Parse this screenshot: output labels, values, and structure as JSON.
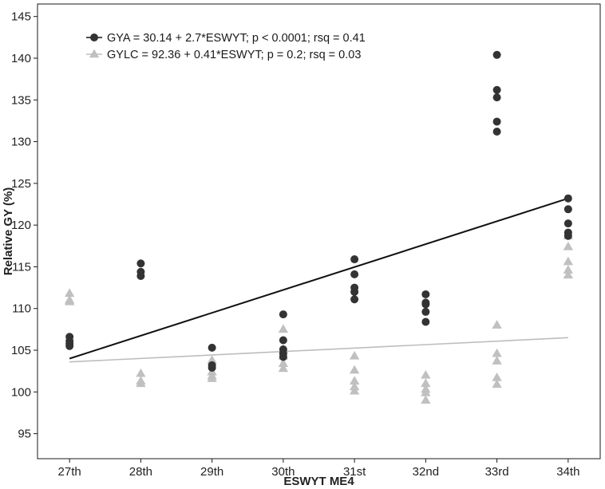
{
  "chart_data": {
    "type": "scatter",
    "xlabel": "ESWYT ME4",
    "ylabel": "Relative GY (%)",
    "categories": [
      "27th",
      "28th",
      "29th",
      "30th",
      "31st",
      "32nd",
      "33rd",
      "34th"
    ],
    "yticks": [
      95,
      100,
      105,
      110,
      115,
      120,
      125,
      130,
      135,
      140,
      145
    ],
    "ylim": [
      92,
      146.5
    ],
    "grid": false,
    "legend_position": "top-left",
    "series": [
      {
        "name": "GYA = 30.14 + 2.7*ESWYT; p < 0.0001; rsq = 0.41",
        "marker": "circle",
        "color": "#333333",
        "points": [
          [
            1,
            106.6
          ],
          [
            1,
            106.1
          ],
          [
            1,
            105.8
          ],
          [
            1,
            105.5
          ],
          [
            2,
            115.4
          ],
          [
            2,
            114.4
          ],
          [
            2,
            113.9
          ],
          [
            3,
            105.3
          ],
          [
            3,
            103.2
          ],
          [
            3,
            102.9
          ],
          [
            4,
            109.3
          ],
          [
            4,
            106.2
          ],
          [
            4,
            105.1
          ],
          [
            4,
            104.6
          ],
          [
            4,
            104.2
          ],
          [
            5,
            115.9
          ],
          [
            5,
            114.1
          ],
          [
            5,
            112.5
          ],
          [
            5,
            112.0
          ],
          [
            5,
            111.1
          ],
          [
            6,
            111.7
          ],
          [
            6,
            110.7
          ],
          [
            6,
            110.5
          ],
          [
            6,
            109.6
          ],
          [
            6,
            108.4
          ],
          [
            7,
            140.4
          ],
          [
            7,
            136.2
          ],
          [
            7,
            135.3
          ],
          [
            7,
            132.4
          ],
          [
            7,
            131.2
          ],
          [
            8,
            123.2
          ],
          [
            8,
            121.9
          ],
          [
            8,
            120.2
          ],
          [
            8,
            119.1
          ],
          [
            8,
            118.7
          ]
        ],
        "fit_line": {
          "color": "#111111",
          "x": [
            1,
            8
          ],
          "y": [
            104.0,
            123.2
          ]
        }
      },
      {
        "name": "GYLC = 92.36 + 0.41*ESWYT; p = 0.2; rsq = 0.03",
        "marker": "triangle",
        "color": "#c0c0c0",
        "points": [
          [
            1,
            111.8
          ],
          [
            1,
            111.0
          ],
          [
            1,
            110.8
          ],
          [
            2,
            102.2
          ],
          [
            2,
            101.3
          ],
          [
            2,
            101.0
          ],
          [
            3,
            103.8
          ],
          [
            3,
            102.4
          ],
          [
            3,
            101.9
          ],
          [
            3,
            101.6
          ],
          [
            4,
            107.5
          ],
          [
            4,
            105.1
          ],
          [
            4,
            104.3
          ],
          [
            4,
            103.4
          ],
          [
            4,
            102.8
          ],
          [
            5,
            104.3
          ],
          [
            5,
            102.6
          ],
          [
            5,
            101.3
          ],
          [
            5,
            100.6
          ],
          [
            5,
            100.1
          ],
          [
            6,
            102.0
          ],
          [
            6,
            101.0
          ],
          [
            6,
            100.3
          ],
          [
            6,
            99.9
          ],
          [
            6,
            99.0
          ],
          [
            7,
            108.0
          ],
          [
            7,
            104.6
          ],
          [
            7,
            103.7
          ],
          [
            7,
            101.7
          ],
          [
            7,
            100.9
          ],
          [
            8,
            118.7
          ],
          [
            8,
            117.4
          ],
          [
            8,
            115.6
          ],
          [
            8,
            114.6
          ],
          [
            8,
            114.0
          ]
        ],
        "fit_line": {
          "color": "#bdbdbd",
          "x": [
            1,
            8
          ],
          "y": [
            103.6,
            106.5
          ]
        }
      }
    ]
  }
}
